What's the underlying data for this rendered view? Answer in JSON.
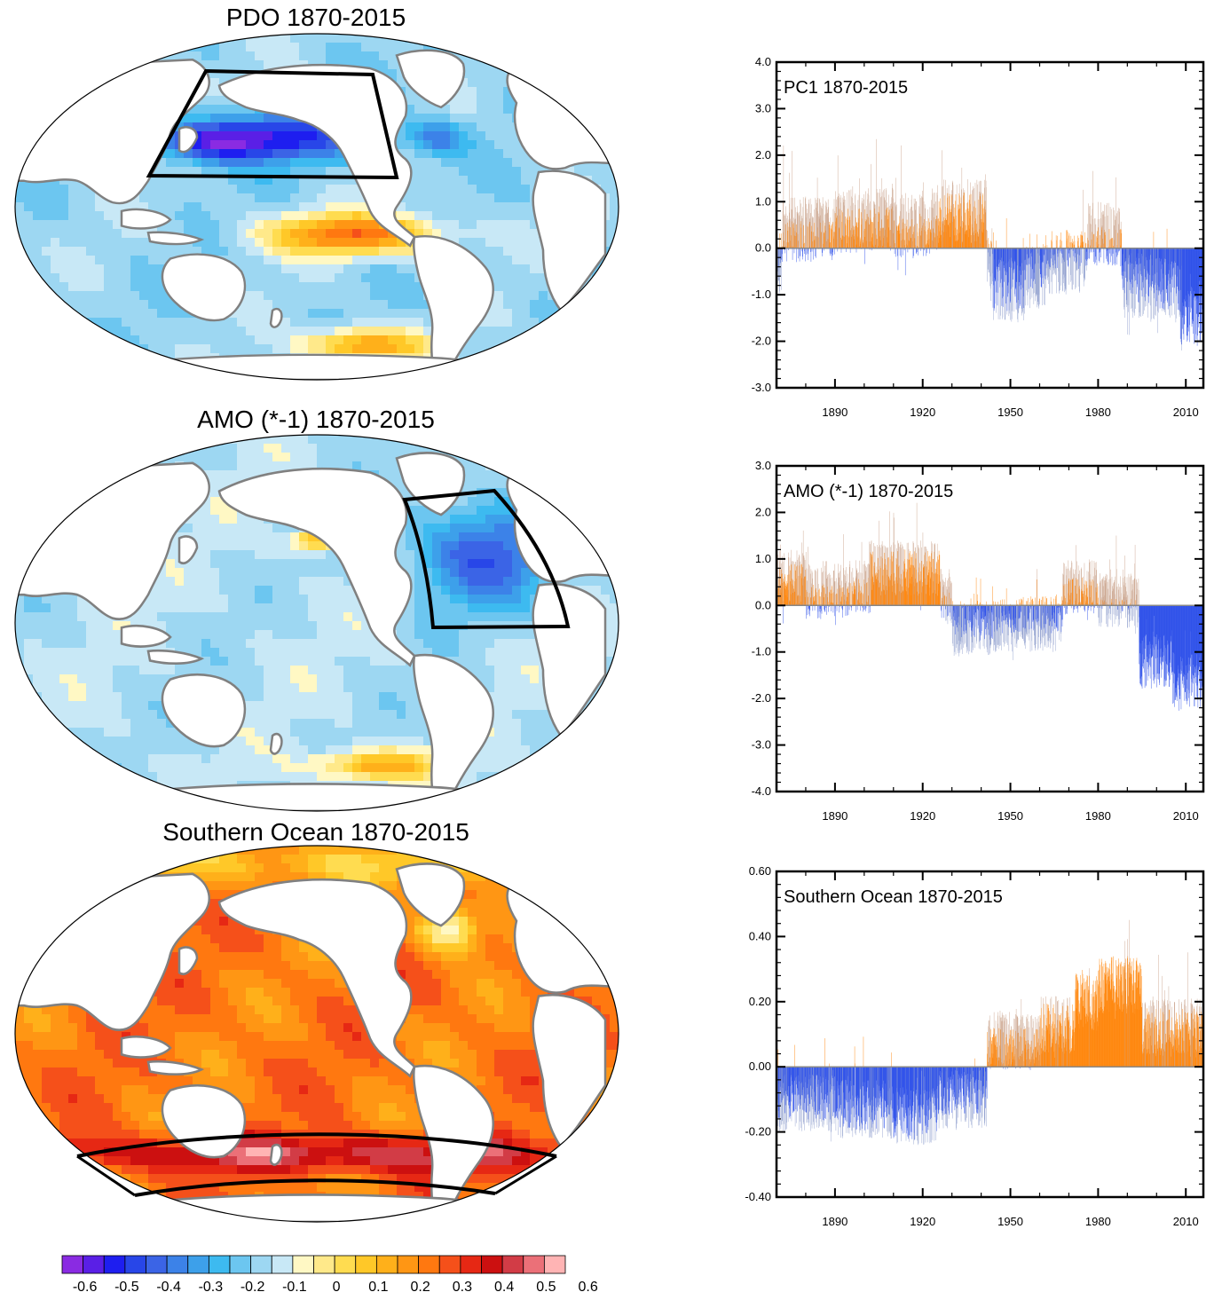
{
  "maps": [
    {
      "title": "PDO 1870-2015",
      "region": "North Pacific box",
      "field": "pdo"
    },
    {
      "title": "AMO (*-1) 1870-2015",
      "region": "North Atlantic box",
      "field": "amo"
    },
    {
      "title": "Southern Ocean 1870-2015",
      "region": "Southern Ocean band",
      "field": "so"
    }
  ],
  "colorbar": {
    "colors": [
      "#8a2be2",
      "#5a1fe6",
      "#1e1ef0",
      "#2846e8",
      "#3b64e6",
      "#3c82e8",
      "#3da0ea",
      "#3dbaf0",
      "#6cc6f0",
      "#9dd7f2",
      "#c8e8f6",
      "#fff8c4",
      "#ffe98a",
      "#ffdc50",
      "#ffc828",
      "#ffb01a",
      "#ff9614",
      "#ff7810",
      "#f5501a",
      "#e62814",
      "#cc1010",
      "#d23c46",
      "#eb7078",
      "#ffb4b4"
    ],
    "labels": [
      "-0.6",
      "-0.5",
      "-0.4",
      "-0.3",
      "-0.2",
      "-0.1",
      "0",
      "0.1",
      "0.2",
      "0.3",
      "0.4",
      "0.5",
      "0.6"
    ]
  },
  "colors": {
    "positive": "#ff8000",
    "negative": "#2448e8",
    "thin_positive": "#c8a088",
    "thin_negative": "#8c9ccc",
    "land": "#ffffff",
    "coast": "#808080"
  },
  "chart_data": [
    {
      "type": "bar",
      "title": "PC1 1870-2015",
      "x_range": [
        1870,
        2016
      ],
      "ylim": [
        -3.0,
        4.0
      ],
      "yticks": [
        "4.0",
        "3.0",
        "2.0",
        "1.0",
        "0.0",
        "-1.0",
        "-2.0",
        "-3.0"
      ],
      "yticks_values": [
        4,
        3,
        2,
        1,
        0,
        -1,
        -2,
        -3
      ],
      "xticks": [
        "1890",
        "1920",
        "1950",
        "1980",
        "2010"
      ],
      "xticks_values": [
        1890,
        1920,
        1950,
        1980,
        2010
      ],
      "segments": [
        [
          1870,
          1872,
          -0.3
        ],
        [
          1872,
          1890,
          0.4
        ],
        [
          1890,
          1910,
          0.6
        ],
        [
          1910,
          1925,
          0.5
        ],
        [
          1925,
          1942,
          0.8
        ],
        [
          1942,
          1944,
          -0.2
        ],
        [
          1944,
          1955,
          -0.9
        ],
        [
          1955,
          1962,
          -0.6
        ],
        [
          1962,
          1976,
          -0.3
        ],
        [
          1976,
          1988,
          0.3
        ],
        [
          1988,
          1998,
          -0.8
        ],
        [
          1998,
          2008,
          -0.9
        ],
        [
          2008,
          2016,
          -1.4
        ]
      ],
      "noise": 0.7
    },
    {
      "type": "bar",
      "title": "AMO (*-1) 1870-2015",
      "x_range": [
        1870,
        2016
      ],
      "ylim": [
        -4.0,
        3.0
      ],
      "yticks": [
        "3.0",
        "2.0",
        "1.0",
        "0.0",
        "-1.0",
        "-2.0",
        "-3.0",
        "-4.0"
      ],
      "yticks_values": [
        3,
        2,
        1,
        0,
        -1,
        -2,
        -3,
        -4
      ],
      "xticks": [
        "1890",
        "1920",
        "1950",
        "1980",
        "2010"
      ],
      "xticks_values": [
        1890,
        1920,
        1950,
        1980,
        2010
      ],
      "segments": [
        [
          1870,
          1880,
          0.6
        ],
        [
          1880,
          1895,
          0.3
        ],
        [
          1895,
          1902,
          0.4
        ],
        [
          1902,
          1926,
          0.8
        ],
        [
          1926,
          1930,
          0.2
        ],
        [
          1930,
          1945,
          -0.5
        ],
        [
          1945,
          1968,
          -0.4
        ],
        [
          1968,
          1980,
          0.4
        ],
        [
          1980,
          1994,
          0.1
        ],
        [
          1994,
          2005,
          -1.2
        ],
        [
          2005,
          2016,
          -1.6
        ]
      ],
      "noise": 0.6
    },
    {
      "type": "bar",
      "title": "Southern Ocean 1870-2015",
      "x_range": [
        1870,
        2016
      ],
      "ylim": [
        -0.4,
        0.6
      ],
      "yticks": [
        "0.60",
        "0.40",
        "0.20",
        "0.00",
        "-0.20",
        "-0.40"
      ],
      "yticks_values": [
        0.6,
        0.4,
        0.2,
        0,
        -0.2,
        -0.4
      ],
      "xticks": [
        "1890",
        "1920",
        "1950",
        "1980",
        "2010"
      ],
      "xticks_values": [
        1890,
        1920,
        1950,
        1980,
        2010
      ],
      "segments": [
        [
          1870,
          1890,
          -0.11
        ],
        [
          1890,
          1910,
          -0.13
        ],
        [
          1910,
          1925,
          -0.15
        ],
        [
          1925,
          1942,
          -0.1
        ],
        [
          1942,
          1960,
          0.08
        ],
        [
          1960,
          1972,
          0.13
        ],
        [
          1972,
          1980,
          0.2
        ],
        [
          1980,
          1995,
          0.25
        ],
        [
          1995,
          2016,
          0.12
        ]
      ],
      "noise": 0.09
    }
  ]
}
